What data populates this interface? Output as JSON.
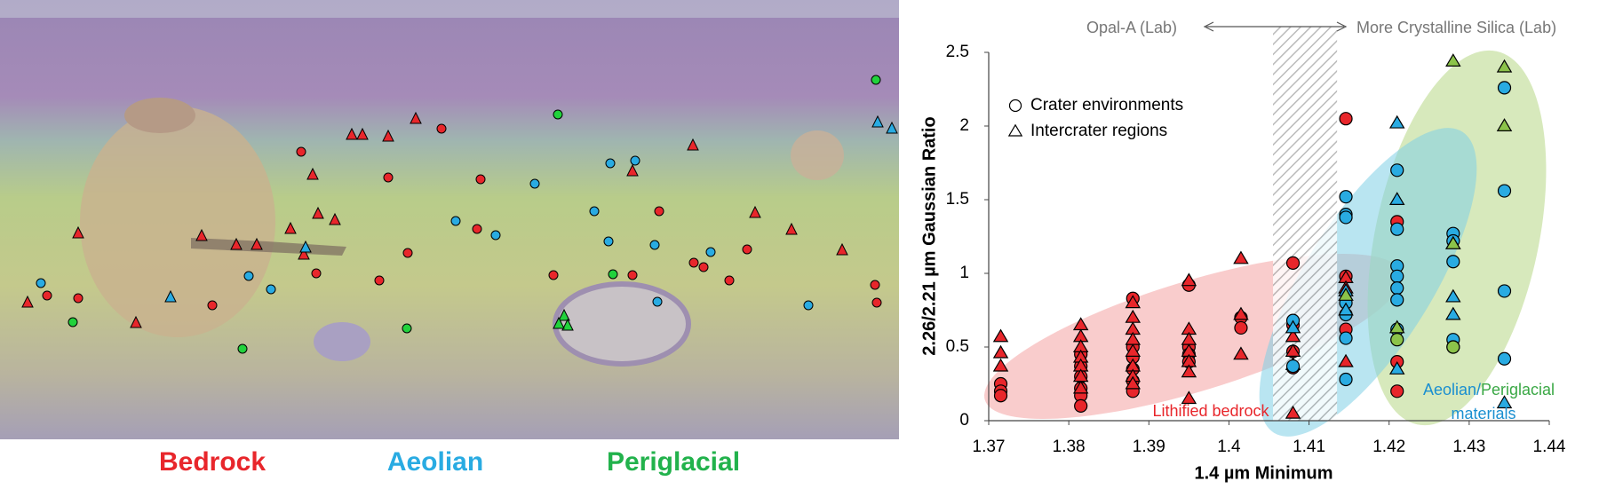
{
  "map_legend": {
    "items": [
      {
        "label": "Bedrock",
        "color": "#e8262b"
      },
      {
        "label": "Aeolian",
        "color": "#29abe2"
      },
      {
        "label": "Periglacial",
        "color": "#22b24c"
      }
    ]
  },
  "chart_data": {
    "type": "scatter",
    "xlabel": "1.4 µm Minimum",
    "ylabel": "2.26/2.21 µm Gaussian Ratio",
    "xlim": [
      1.37,
      1.44
    ],
    "xticks": [
      1.37,
      1.38,
      1.39,
      1.4,
      1.41,
      1.42,
      1.43,
      1.44
    ],
    "ylim": [
      0,
      2.5
    ],
    "yticks": [
      0,
      0.5,
      1,
      1.5,
      2,
      2.5
    ],
    "shaded_band": [
      1.4055,
      1.4135
    ],
    "annotations": [
      "Opal-A (Lab)",
      "More Crystalline Silica (Lab)",
      "Lithified bedrock",
      "Aeolian/",
      "Periglacial",
      "materials"
    ],
    "legend": [
      {
        "label": "Crater environments",
        "marker": "circle"
      },
      {
        "label": "Intercrater regions",
        "marker": "triangle"
      }
    ],
    "series": [
      {
        "marker": "circle",
        "color": "#e8262b",
        "x": [
          1.3715,
          1.3715,
          1.3715,
          1.3815,
          1.3815,
          1.3815,
          1.3815,
          1.3815,
          1.3815,
          1.388,
          1.388,
          1.388,
          1.388,
          1.388,
          1.388,
          1.395,
          1.395,
          1.395,
          1.395,
          1.4015,
          1.4015,
          1.408,
          1.408,
          1.408,
          1.408,
          1.4146,
          1.4146,
          1.4146,
          1.421,
          1.421,
          1.421
        ],
        "values": [
          0.25,
          0.2,
          0.17,
          0.45,
          0.37,
          0.3,
          0.22,
          0.17,
          0.1,
          0.83,
          0.5,
          0.43,
          0.35,
          0.27,
          0.2,
          0.92,
          0.5,
          0.45,
          0.4,
          0.7,
          0.63,
          1.07,
          0.65,
          0.47,
          0.36,
          2.05,
          0.98,
          0.62,
          1.35,
          0.4,
          0.2
        ]
      },
      {
        "marker": "triangle",
        "color": "#e8262b",
        "x": [
          1.3715,
          1.3715,
          1.3715,
          1.3815,
          1.3815,
          1.3815,
          1.3815,
          1.3815,
          1.3815,
          1.3815,
          1.388,
          1.388,
          1.388,
          1.388,
          1.388,
          1.388,
          1.388,
          1.388,
          1.395,
          1.395,
          1.395,
          1.395,
          1.395,
          1.395,
          1.395,
          1.4015,
          1.4015,
          1.4015,
          1.408,
          1.408,
          1.408,
          1.408,
          1.4146,
          1.4146,
          1.4146
        ],
        "values": [
          0.57,
          0.46,
          0.37,
          0.65,
          0.57,
          0.5,
          0.43,
          0.37,
          0.3,
          0.22,
          0.8,
          0.7,
          0.62,
          0.55,
          0.47,
          0.37,
          0.3,
          0.25,
          0.95,
          0.62,
          0.55,
          0.47,
          0.4,
          0.33,
          0.15,
          1.1,
          0.72,
          0.45,
          0.57,
          0.47,
          0.38,
          0.05,
          0.97,
          0.9,
          0.4
        ]
      },
      {
        "marker": "circle",
        "color": "#29abe2",
        "x": [
          1.408,
          1.408,
          1.4146,
          1.4146,
          1.4146,
          1.4146,
          1.4146,
          1.4146,
          1.4146,
          1.421,
          1.421,
          1.421,
          1.421,
          1.421,
          1.421,
          1.421,
          1.428,
          1.428,
          1.428,
          1.428,
          1.428,
          1.4344,
          1.4344,
          1.4344,
          1.4344
        ],
        "values": [
          0.68,
          0.37,
          1.52,
          1.4,
          1.38,
          0.8,
          0.72,
          0.56,
          0.28,
          1.7,
          1.3,
          1.05,
          0.98,
          0.9,
          0.82,
          0.62,
          1.27,
          1.22,
          1.08,
          0.55,
          0.5,
          2.26,
          1.56,
          0.88,
          0.42
        ]
      },
      {
        "marker": "triangle",
        "color": "#29abe2",
        "x": [
          1.408,
          1.4146,
          1.4146,
          1.421,
          1.421,
          1.421,
          1.428,
          1.428,
          1.428,
          1.4344
        ],
        "values": [
          0.63,
          0.88,
          0.75,
          2.02,
          1.5,
          0.35,
          1.2,
          0.84,
          0.72,
          0.12
        ]
      },
      {
        "marker": "circle",
        "color": "#8cc34a",
        "x": [
          1.421,
          1.428
        ],
        "values": [
          0.55,
          0.5
        ]
      },
      {
        "marker": "triangle",
        "color": "#8cc34a",
        "x": [
          1.4146,
          1.421,
          1.428,
          1.428,
          1.4344,
          1.4344
        ],
        "values": [
          0.85,
          0.63,
          2.44,
          1.2,
          2.4,
          2.0
        ]
      }
    ]
  }
}
